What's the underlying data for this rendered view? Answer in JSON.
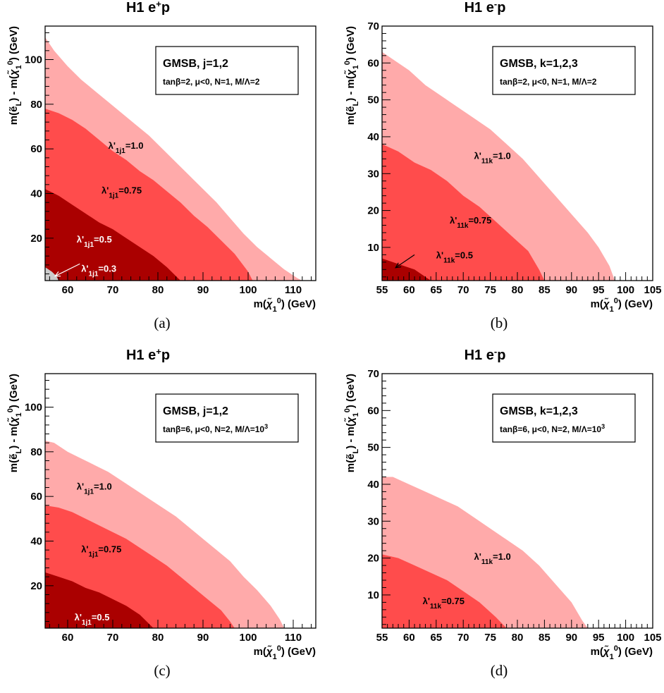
{
  "chart_data": [
    {
      "type": "area",
      "panel_label": "(a)",
      "title_html": "H1 e<tspan baseline-shift=\"super\" font-size=\"13\">+</tspan>p",
      "xlabel_html": "m(<tspan font-style=\"italic\">χ̃</tspan><tspan baseline-shift=\"sub\" font-size=\"11\">1</tspan><tspan baseline-shift=\"super\" font-size=\"11\">0</tspan>) (GeV)",
      "ylabel_html": "m(ẽ<tspan baseline-shift=\"sub\" font-size=\"11\">L</tspan>) - m(<tspan font-style=\"italic\">χ̃</tspan><tspan baseline-shift=\"sub\" font-size=\"11\">1</tspan><tspan baseline-shift=\"super\" font-size=\"11\">0</tspan>) (GeV)",
      "xlim": [
        55,
        115
      ],
      "ylim": [
        1,
        115
      ],
      "xticks": [
        60,
        70,
        80,
        90,
        100,
        110
      ],
      "yticks": [
        20,
        40,
        60,
        80,
        100
      ],
      "legend_title": "GMSB, j=1,2",
      "legend_params_html": "tanβ=2, μ&lt;0, N=1, M/Λ=2",
      "series": [
        {
          "name": "λ'_{1j1}=1.0",
          "color": "#ffaaaa",
          "x": [
            55,
            57,
            60,
            63,
            66,
            69,
            72,
            75,
            78,
            81,
            84,
            87,
            90,
            93,
            96,
            99,
            102,
            105,
            108,
            111,
            112
          ],
          "y": [
            110,
            104,
            97,
            91,
            86,
            81,
            76,
            71,
            66,
            60,
            54,
            48,
            42,
            36,
            29,
            22,
            16,
            11,
            6,
            2,
            1
          ]
        },
        {
          "name": "λ'_{1j1}=0.75",
          "color": "#ff4c4c",
          "x": [
            55,
            58,
            61,
            64,
            67,
            70,
            73,
            76,
            79,
            82,
            85,
            88,
            91,
            94,
            97,
            100,
            101
          ],
          "y": [
            78,
            76,
            73,
            69,
            64,
            59,
            55,
            50,
            46,
            41,
            36,
            30,
            25,
            19,
            13,
            5,
            1
          ]
        },
        {
          "name": "λ'_{1j1}=0.5",
          "color": "#aa0000",
          "x": [
            55,
            58,
            61,
            64,
            67,
            70,
            73,
            76,
            79,
            82,
            84,
            85
          ],
          "y": [
            42,
            39,
            35,
            31,
            27,
            24,
            20,
            16,
            12,
            7,
            3,
            1
          ]
        },
        {
          "name": "λ'_{1j1}=0.3",
          "color": "#cccccc",
          "x": [
            55,
            56.5,
            57.5,
            58
          ],
          "y": [
            7,
            5,
            3,
            1
          ]
        }
      ],
      "labels": [
        {
          "text_html": "λ'<tspan baseline-shift=\"sub\" font-size=\"10\">1j1</tspan>=1.0",
          "x": 69,
          "y": 60,
          "color": "#000000"
        },
        {
          "text_html": "λ'<tspan baseline-shift=\"sub\" font-size=\"10\">1j1</tspan>=0.75",
          "x": 67.5,
          "y": 40,
          "color": "#000000"
        },
        {
          "text_html": "λ'<tspan baseline-shift=\"sub\" font-size=\"10\">1j1</tspan>=0.5",
          "x": 62,
          "y": 18,
          "color": "#ffffff"
        },
        {
          "text_html": "λ'<tspan baseline-shift=\"sub\" font-size=\"10\">1j1</tspan>=0.3",
          "x": 63,
          "y": 5,
          "color": "#ffffff"
        }
      ],
      "arrow": {
        "from": [
          62.7,
          8.5
        ],
        "to": [
          57.2,
          3
        ],
        "color": "#ffffff"
      }
    },
    {
      "type": "area",
      "panel_label": "(b)",
      "title_html": "H1 e<tspan baseline-shift=\"super\" font-size=\"13\">-</tspan>p",
      "xlabel_html": "m(<tspan font-style=\"italic\">χ̃</tspan><tspan baseline-shift=\"sub\" font-size=\"11\">1</tspan><tspan baseline-shift=\"super\" font-size=\"11\">0</tspan>) (GeV)",
      "ylabel_html": "m(ẽ<tspan baseline-shift=\"sub\" font-size=\"11\">L</tspan>) - m(<tspan font-style=\"italic\">χ̃</tspan><tspan baseline-shift=\"sub\" font-size=\"11\">1</tspan><tspan baseline-shift=\"super\" font-size=\"11\">0</tspan>) (GeV)",
      "xlim": [
        55,
        105
      ],
      "ylim": [
        1,
        70
      ],
      "xticks": [
        55,
        60,
        65,
        70,
        75,
        80,
        85,
        90,
        95,
        100,
        105
      ],
      "yticks": [
        10,
        20,
        30,
        40,
        50,
        60,
        70
      ],
      "legend_title": "GMSB, k=1,2,3",
      "legend_params_html": "tanβ=2, μ&lt;0, N=1, M/Λ=2",
      "series": [
        {
          "name": "λ'_{11k}=1.0",
          "color": "#ffaaaa",
          "x": [
            55,
            57,
            60,
            63,
            66,
            69,
            72,
            75,
            78,
            81,
            84,
            87,
            90,
            93,
            95,
            97,
            98
          ],
          "y": [
            63,
            61,
            58,
            54,
            51,
            48,
            45,
            42,
            38,
            34,
            29,
            24,
            19,
            14,
            10,
            5,
            1
          ]
        },
        {
          "name": "λ'_{11k}=0.75",
          "color": "#ff4c4c",
          "x": [
            55,
            58,
            61,
            64,
            67,
            70,
            73,
            76,
            79,
            82,
            84,
            85
          ],
          "y": [
            38,
            36,
            33,
            31,
            28,
            24,
            21,
            17,
            13,
            9,
            4,
            1
          ]
        },
        {
          "name": "λ'_{11k}=0.5",
          "color": "#aa0000",
          "x": [
            55,
            57,
            59,
            61,
            63,
            64
          ],
          "y": [
            7,
            6,
            5,
            4,
            2,
            1
          ]
        }
      ],
      "labels": [
        {
          "text_html": "λ'<tspan baseline-shift=\"sub\" font-size=\"10\">11k</tspan>=1.0",
          "x": 72,
          "y": 34,
          "color": "#000000"
        },
        {
          "text_html": "λ'<tspan baseline-shift=\"sub\" font-size=\"10\">11k</tspan>=0.75",
          "x": 67.5,
          "y": 16.5,
          "color": "#000000"
        },
        {
          "text_html": "λ'<tspan baseline-shift=\"sub\" font-size=\"10\">11k</tspan>=0.5",
          "x": 65,
          "y": 7,
          "color": "#000000"
        }
      ],
      "arrow": {
        "from": [
          61,
          8
        ],
        "to": [
          57.5,
          4.5
        ],
        "color": "#000000"
      }
    },
    {
      "type": "area",
      "panel_label": "(c)",
      "title_html": "H1 e<tspan baseline-shift=\"super\" font-size=\"13\">+</tspan>p",
      "xlabel_html": "m(<tspan font-style=\"italic\">χ̃</tspan><tspan baseline-shift=\"sub\" font-size=\"11\">1</tspan><tspan baseline-shift=\"super\" font-size=\"11\">0</tspan>) (GeV)",
      "ylabel_html": "m(ẽ<tspan baseline-shift=\"sub\" font-size=\"11\">L</tspan>) - m(<tspan font-style=\"italic\">χ̃</tspan><tspan baseline-shift=\"sub\" font-size=\"11\">1</tspan><tspan baseline-shift=\"super\" font-size=\"11\">0</tspan>) (GeV)",
      "xlim": [
        55,
        115
      ],
      "ylim": [
        1,
        115
      ],
      "xticks": [
        60,
        70,
        80,
        90,
        100,
        110
      ],
      "yticks": [
        20,
        40,
        60,
        80,
        100
      ],
      "legend_title": "GMSB, j=1,2",
      "legend_params_html": "tanβ=6, μ&lt;0, N=2, M/Λ=10<tspan baseline-shift=\"super\" font-size=\"9\">3</tspan>",
      "series": [
        {
          "name": "λ'_{1j1}=1.0",
          "color": "#ffaaaa",
          "x": [
            55,
            57,
            60,
            63,
            66,
            69,
            72,
            75,
            78,
            81,
            84,
            87,
            90,
            93,
            96,
            99,
            102,
            105,
            107,
            108
          ],
          "y": [
            85,
            84,
            80,
            77,
            74,
            71,
            67,
            63,
            59,
            55,
            51,
            46,
            41,
            36,
            31,
            24,
            18,
            11,
            5,
            1
          ]
        },
        {
          "name": "λ'_{1j1}=0.75",
          "color": "#ff4c4c",
          "x": [
            55,
            58,
            61,
            64,
            67,
            70,
            73,
            76,
            79,
            82,
            85,
            88,
            91,
            94,
            96,
            97
          ],
          "y": [
            56,
            55,
            53,
            50,
            47,
            44,
            41,
            37,
            33,
            29,
            24,
            19,
            14,
            9,
            4,
            1
          ]
        },
        {
          "name": "λ'_{1j1}=0.5",
          "color": "#aa0000",
          "x": [
            55,
            58,
            61,
            64,
            67,
            70,
            73,
            76,
            78,
            79
          ],
          "y": [
            26,
            24,
            22,
            19,
            17,
            14,
            11,
            7,
            3,
            1
          ]
        }
      ],
      "labels": [
        {
          "text_html": "λ'<tspan baseline-shift=\"sub\" font-size=\"10\">1j1</tspan>=1.0",
          "x": 62,
          "y": 63,
          "color": "#000000"
        },
        {
          "text_html": "λ'<tspan baseline-shift=\"sub\" font-size=\"10\">1j1</tspan>=0.75",
          "x": 63,
          "y": 35,
          "color": "#000000"
        },
        {
          "text_html": "λ'<tspan baseline-shift=\"sub\" font-size=\"10\">1j1</tspan>=0.5",
          "x": 61.5,
          "y": 4.5,
          "color": "#ffffff"
        }
      ]
    },
    {
      "type": "area",
      "panel_label": "(d)",
      "title_html": "H1 e<tspan baseline-shift=\"super\" font-size=\"13\">-</tspan>p",
      "xlabel_html": "m(<tspan font-style=\"italic\">χ̃</tspan><tspan baseline-shift=\"sub\" font-size=\"11\">1</tspan><tspan baseline-shift=\"super\" font-size=\"11\">0</tspan>) (GeV)",
      "ylabel_html": "m(ẽ<tspan baseline-shift=\"sub\" font-size=\"11\">L</tspan>) - m(<tspan font-style=\"italic\">χ̃</tspan><tspan baseline-shift=\"sub\" font-size=\"11\">1</tspan><tspan baseline-shift=\"super\" font-size=\"11\">0</tspan>) (GeV)",
      "xlim": [
        55,
        105
      ],
      "ylim": [
        1,
        70
      ],
      "xticks": [
        55,
        60,
        65,
        70,
        75,
        80,
        85,
        90,
        95,
        100,
        105
      ],
      "yticks": [
        10,
        20,
        30,
        40,
        50,
        60,
        70
      ],
      "legend_title": "GMSB, k=1,2,3",
      "legend_params_html": "tanβ=6, μ&lt;0, N=2, M/Λ=10<tspan baseline-shift=\"super\" font-size=\"9\">3</tspan>",
      "series": [
        {
          "name": "λ'_{11k}=1.0",
          "color": "#ffaaaa",
          "x": [
            55,
            57,
            60,
            63,
            66,
            69,
            72,
            75,
            78,
            81,
            84,
            87,
            90,
            92,
            93
          ],
          "y": [
            42,
            42,
            40,
            38,
            36,
            34,
            31,
            28,
            25,
            22,
            18,
            13,
            8,
            3,
            1
          ]
        },
        {
          "name": "λ'_{11k}=0.75",
          "color": "#ff4c4c",
          "x": [
            55,
            58,
            61,
            64,
            67,
            70,
            73,
            76,
            78
          ],
          "y": [
            21,
            20,
            18,
            16,
            14,
            11,
            8,
            4,
            1
          ]
        }
      ],
      "labels": [
        {
          "text_html": "λ'<tspan baseline-shift=\"sub\" font-size=\"10\">11k</tspan>=1.0",
          "x": 72,
          "y": 19.5,
          "color": "#000000"
        },
        {
          "text_html": "λ'<tspan baseline-shift=\"sub\" font-size=\"10\">11k</tspan>=0.75",
          "x": 62.5,
          "y": 7.5,
          "color": "#000000"
        }
      ]
    }
  ]
}
